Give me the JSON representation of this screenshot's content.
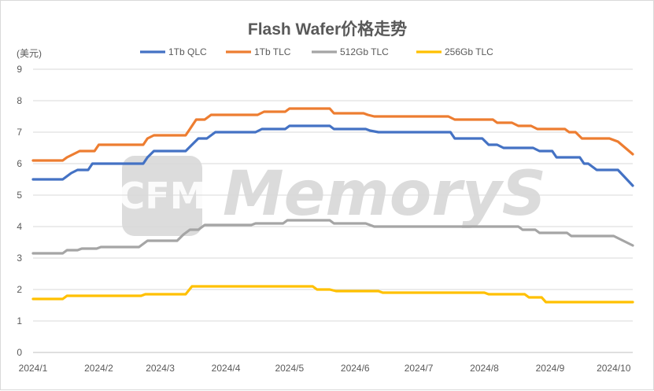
{
  "chart_data": {
    "type": "line",
    "title": "Flash Wafer价格走势",
    "unit_label": "(美元)",
    "ylim": [
      0,
      9
    ],
    "y_ticks": [
      "0",
      "1",
      "2",
      "3",
      "4",
      "5",
      "6",
      "7",
      "8",
      "9"
    ],
    "x_tick_labels": [
      "2024/1",
      "2024/2",
      "2024/3",
      "2024/4",
      "2024/5",
      "2024/6",
      "2024/7",
      "2024/8",
      "2024/9",
      "2024/10"
    ],
    "x_domain": [
      "2024-01-01",
      "2024-10-10"
    ],
    "grid": "horizontal",
    "legend_position": "top",
    "series": [
      {
        "name": "1Tb QLC",
        "color": "#4472c4",
        "points": [
          [
            "2024-01-01",
            5.5
          ],
          [
            "2024-01-15",
            5.5
          ],
          [
            "2024-01-17",
            5.6
          ],
          [
            "2024-01-19",
            5.7
          ],
          [
            "2024-01-22",
            5.8
          ],
          [
            "2024-01-27",
            5.8
          ],
          [
            "2024-01-29",
            6.0
          ],
          [
            "2024-02-22",
            6.0
          ],
          [
            "2024-02-24",
            6.2
          ],
          [
            "2024-02-27",
            6.4
          ],
          [
            "2024-03-13",
            6.4
          ],
          [
            "2024-03-16",
            6.6
          ],
          [
            "2024-03-19",
            6.8
          ],
          [
            "2024-03-23",
            6.8
          ],
          [
            "2024-03-27",
            7.0
          ],
          [
            "2024-04-15",
            7.0
          ],
          [
            "2024-04-18",
            7.1
          ],
          [
            "2024-04-29",
            7.1
          ],
          [
            "2024-05-01",
            7.2
          ],
          [
            "2024-05-20",
            7.2
          ],
          [
            "2024-05-22",
            7.1
          ],
          [
            "2024-06-06",
            7.1
          ],
          [
            "2024-06-08",
            7.05
          ],
          [
            "2024-06-12",
            7.0
          ],
          [
            "2024-07-16",
            7.0
          ],
          [
            "2024-07-18",
            6.8
          ],
          [
            "2024-07-31",
            6.8
          ],
          [
            "2024-08-03",
            6.6
          ],
          [
            "2024-08-07",
            6.6
          ],
          [
            "2024-08-10",
            6.5
          ],
          [
            "2024-08-24",
            6.5
          ],
          [
            "2024-08-27",
            6.4
          ],
          [
            "2024-09-02",
            6.4
          ],
          [
            "2024-09-04",
            6.2
          ],
          [
            "2024-09-15",
            6.2
          ],
          [
            "2024-09-17",
            6.0
          ],
          [
            "2024-09-19",
            6.0
          ],
          [
            "2024-09-23",
            5.8
          ],
          [
            "2024-10-03",
            5.8
          ],
          [
            "2024-10-10",
            5.3
          ]
        ]
      },
      {
        "name": "1Tb TLC",
        "color": "#ed7d31",
        "points": [
          [
            "2024-01-01",
            6.1
          ],
          [
            "2024-01-15",
            6.1
          ],
          [
            "2024-01-17",
            6.2
          ],
          [
            "2024-01-20",
            6.3
          ],
          [
            "2024-01-23",
            6.4
          ],
          [
            "2024-01-30",
            6.4
          ],
          [
            "2024-02-01",
            6.6
          ],
          [
            "2024-02-22",
            6.6
          ],
          [
            "2024-02-24",
            6.8
          ],
          [
            "2024-02-27",
            6.9
          ],
          [
            "2024-03-13",
            6.9
          ],
          [
            "2024-03-15",
            7.1
          ],
          [
            "2024-03-18",
            7.4
          ],
          [
            "2024-03-22",
            7.4
          ],
          [
            "2024-03-25",
            7.55
          ],
          [
            "2024-04-16",
            7.55
          ],
          [
            "2024-04-19",
            7.65
          ],
          [
            "2024-04-29",
            7.65
          ],
          [
            "2024-05-01",
            7.75
          ],
          [
            "2024-05-20",
            7.75
          ],
          [
            "2024-05-22",
            7.6
          ],
          [
            "2024-06-05",
            7.6
          ],
          [
            "2024-06-07",
            7.55
          ],
          [
            "2024-06-10",
            7.5
          ],
          [
            "2024-07-15",
            7.5
          ],
          [
            "2024-07-18",
            7.4
          ],
          [
            "2024-08-05",
            7.4
          ],
          [
            "2024-08-07",
            7.3
          ],
          [
            "2024-08-14",
            7.3
          ],
          [
            "2024-08-17",
            7.2
          ],
          [
            "2024-08-23",
            7.2
          ],
          [
            "2024-08-26",
            7.1
          ],
          [
            "2024-09-08",
            7.1
          ],
          [
            "2024-09-10",
            7.0
          ],
          [
            "2024-09-13",
            7.0
          ],
          [
            "2024-09-16",
            6.8
          ],
          [
            "2024-09-29",
            6.8
          ],
          [
            "2024-10-03",
            6.7
          ],
          [
            "2024-10-10",
            6.3
          ]
        ]
      },
      {
        "name": "512Gb TLC",
        "color": "#a5a5a5",
        "points": [
          [
            "2024-01-01",
            3.15
          ],
          [
            "2024-01-15",
            3.15
          ],
          [
            "2024-01-17",
            3.25
          ],
          [
            "2024-01-22",
            3.25
          ],
          [
            "2024-01-24",
            3.3
          ],
          [
            "2024-01-31",
            3.3
          ],
          [
            "2024-02-02",
            3.35
          ],
          [
            "2024-02-20",
            3.35
          ],
          [
            "2024-02-22",
            3.45
          ],
          [
            "2024-02-24",
            3.55
          ],
          [
            "2024-03-09",
            3.55
          ],
          [
            "2024-03-12",
            3.75
          ],
          [
            "2024-03-15",
            3.9
          ],
          [
            "2024-03-19",
            3.9
          ],
          [
            "2024-03-22",
            4.05
          ],
          [
            "2024-04-13",
            4.05
          ],
          [
            "2024-04-15",
            4.1
          ],
          [
            "2024-04-28",
            4.1
          ],
          [
            "2024-04-30",
            4.2
          ],
          [
            "2024-05-20",
            4.2
          ],
          [
            "2024-05-22",
            4.1
          ],
          [
            "2024-06-06",
            4.1
          ],
          [
            "2024-06-10",
            4.0
          ],
          [
            "2024-08-17",
            4.0
          ],
          [
            "2024-08-19",
            3.9
          ],
          [
            "2024-08-25",
            3.9
          ],
          [
            "2024-08-27",
            3.8
          ],
          [
            "2024-09-09",
            3.8
          ],
          [
            "2024-09-11",
            3.7
          ],
          [
            "2024-10-01",
            3.7
          ],
          [
            "2024-10-10",
            3.4
          ]
        ]
      },
      {
        "name": "256Gb TLC",
        "color": "#ffc000",
        "points": [
          [
            "2024-01-01",
            1.7
          ],
          [
            "2024-01-15",
            1.7
          ],
          [
            "2024-01-17",
            1.8
          ],
          [
            "2024-02-21",
            1.8
          ],
          [
            "2024-02-23",
            1.85
          ],
          [
            "2024-03-13",
            1.85
          ],
          [
            "2024-03-16",
            2.1
          ],
          [
            "2024-05-12",
            2.1
          ],
          [
            "2024-05-14",
            2.0
          ],
          [
            "2024-05-20",
            2.0
          ],
          [
            "2024-05-23",
            1.95
          ],
          [
            "2024-06-12",
            1.95
          ],
          [
            "2024-06-14",
            1.9
          ],
          [
            "2024-08-01",
            1.9
          ],
          [
            "2024-08-03",
            1.85
          ],
          [
            "2024-08-20",
            1.85
          ],
          [
            "2024-08-22",
            1.75
          ],
          [
            "2024-08-28",
            1.75
          ],
          [
            "2024-08-30",
            1.6
          ],
          [
            "2024-10-10",
            1.6
          ]
        ]
      }
    ]
  },
  "watermark": {
    "logo": "CFM",
    "text": "MemoryS"
  }
}
